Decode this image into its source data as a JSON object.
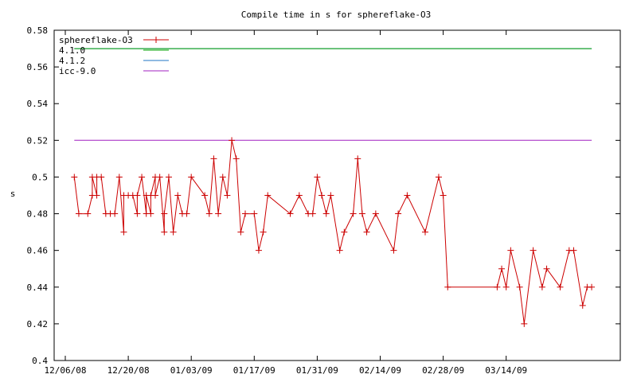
{
  "chart_data": {
    "type": "line",
    "title": "Compile time in s for sphereflake-O3",
    "xlabel": "",
    "ylabel": "s",
    "x_tick_labels": [
      "12/06/08",
      "12/20/08",
      "01/03/09",
      "01/17/09",
      "01/31/09",
      "02/14/09",
      "02/28/09",
      "03/14/09"
    ],
    "x_ticks_days_start": "12/06/08",
    "ylim": [
      0.4,
      0.58
    ],
    "y_ticks": [
      "0.4",
      "0.42",
      "0.44",
      "0.46",
      "0.48",
      "0.5",
      "0.52",
      "0.54",
      "0.56",
      "0.58"
    ],
    "legend_placement": "top-left",
    "series": [
      {
        "name": "sphereflake-O3",
        "color": "#cc0000",
        "marker": "plus",
        "points": [
          {
            "x": "12/08/08",
            "y": 0.5
          },
          {
            "x": "12/09/08",
            "y": 0.48
          },
          {
            "x": "12/11/08",
            "y": 0.48
          },
          {
            "x": "12/12/08",
            "y": 0.49
          },
          {
            "x": "12/12/08",
            "y": 0.5
          },
          {
            "x": "12/13/08",
            "y": 0.49
          },
          {
            "x": "12/13/08",
            "y": 0.5
          },
          {
            "x": "12/14/08",
            "y": 0.5
          },
          {
            "x": "12/15/08",
            "y": 0.48
          },
          {
            "x": "12/16/08",
            "y": 0.48
          },
          {
            "x": "12/17/08",
            "y": 0.48
          },
          {
            "x": "12/18/08",
            "y": 0.5
          },
          {
            "x": "12/19/08",
            "y": 0.47
          },
          {
            "x": "12/19/08",
            "y": 0.49
          },
          {
            "x": "12/20/08",
            "y": 0.49
          },
          {
            "x": "12/21/08",
            "y": 0.49
          },
          {
            "x": "12/22/08",
            "y": 0.48
          },
          {
            "x": "12/22/08",
            "y": 0.49
          },
          {
            "x": "12/23/08",
            "y": 0.5
          },
          {
            "x": "12/24/08",
            "y": 0.48
          },
          {
            "x": "12/24/08",
            "y": 0.49
          },
          {
            "x": "12/25/08",
            "y": 0.48
          },
          {
            "x": "12/25/08",
            "y": 0.49
          },
          {
            "x": "12/26/08",
            "y": 0.5
          },
          {
            "x": "12/26/08",
            "y": 0.49
          },
          {
            "x": "12/27/08",
            "y": 0.5
          },
          {
            "x": "12/28/08",
            "y": 0.47
          },
          {
            "x": "12/28/08",
            "y": 0.48
          },
          {
            "x": "12/29/08",
            "y": 0.5
          },
          {
            "x": "12/30/08",
            "y": 0.47
          },
          {
            "x": "12/31/08",
            "y": 0.49
          },
          {
            "x": "01/01/09",
            "y": 0.48
          },
          {
            "x": "01/02/09",
            "y": 0.48
          },
          {
            "x": "01/03/09",
            "y": 0.5
          },
          {
            "x": "01/06/09",
            "y": 0.49
          },
          {
            "x": "01/07/09",
            "y": 0.48
          },
          {
            "x": "01/08/09",
            "y": 0.51
          },
          {
            "x": "01/09/09",
            "y": 0.48
          },
          {
            "x": "01/10/09",
            "y": 0.5
          },
          {
            "x": "01/11/09",
            "y": 0.49
          },
          {
            "x": "01/12/09",
            "y": 0.52
          },
          {
            "x": "01/13/09",
            "y": 0.51
          },
          {
            "x": "01/14/09",
            "y": 0.47
          },
          {
            "x": "01/15/09",
            "y": 0.48
          },
          {
            "x": "01/17/09",
            "y": 0.48
          },
          {
            "x": "01/18/09",
            "y": 0.46
          },
          {
            "x": "01/19/09",
            "y": 0.47
          },
          {
            "x": "01/20/09",
            "y": 0.49
          },
          {
            "x": "01/25/09",
            "y": 0.48
          },
          {
            "x": "01/27/09",
            "y": 0.49
          },
          {
            "x": "01/29/09",
            "y": 0.48
          },
          {
            "x": "01/30/09",
            "y": 0.48
          },
          {
            "x": "01/31/09",
            "y": 0.5
          },
          {
            "x": "02/01/09",
            "y": 0.49
          },
          {
            "x": "02/02/09",
            "y": 0.48
          },
          {
            "x": "02/03/09",
            "y": 0.49
          },
          {
            "x": "02/05/09",
            "y": 0.46
          },
          {
            "x": "02/06/09",
            "y": 0.47
          },
          {
            "x": "02/08/09",
            "y": 0.48
          },
          {
            "x": "02/09/09",
            "y": 0.51
          },
          {
            "x": "02/10/09",
            "y": 0.48
          },
          {
            "x": "02/11/09",
            "y": 0.47
          },
          {
            "x": "02/13/09",
            "y": 0.48
          },
          {
            "x": "02/17/09",
            "y": 0.46
          },
          {
            "x": "02/18/09",
            "y": 0.48
          },
          {
            "x": "02/20/09",
            "y": 0.49
          },
          {
            "x": "02/24/09",
            "y": 0.47
          },
          {
            "x": "02/27/09",
            "y": 0.5
          },
          {
            "x": "02/28/09",
            "y": 0.49
          },
          {
            "x": "03/01/09",
            "y": 0.44
          },
          {
            "x": "03/12/09",
            "y": 0.44
          },
          {
            "x": "03/13/09",
            "y": 0.45
          },
          {
            "x": "03/14/09",
            "y": 0.44
          },
          {
            "x": "03/15/09",
            "y": 0.46
          },
          {
            "x": "03/17/09",
            "y": 0.44
          },
          {
            "x": "03/18/09",
            "y": 0.42
          },
          {
            "x": "03/20/09",
            "y": 0.46
          },
          {
            "x": "03/22/09",
            "y": 0.44
          },
          {
            "x": "03/23/09",
            "y": 0.45
          },
          {
            "x": "03/26/09",
            "y": 0.44
          },
          {
            "x": "03/28/09",
            "y": 0.46
          },
          {
            "x": "03/29/09",
            "y": 0.46
          },
          {
            "x": "03/31/09",
            "y": 0.43
          },
          {
            "x": "04/01/09",
            "y": 0.44
          },
          {
            "x": "04/02/09",
            "y": 0.44
          }
        ]
      },
      {
        "name": "4.1.0",
        "color": "#00a000",
        "marker": "none",
        "points": [
          {
            "x": "12/08/08",
            "y": 0.57
          },
          {
            "x": "04/02/09",
            "y": 0.57
          }
        ]
      },
      {
        "name": "4.1.2",
        "color": "#1f74c4",
        "marker": "none",
        "points": [
          {
            "x": "12/08/08",
            "y": 0.57
          },
          {
            "x": "04/02/09",
            "y": 0.57
          }
        ]
      },
      {
        "name": "icc-9.0",
        "color": "#a020c0",
        "marker": "none",
        "points": [
          {
            "x": "12/08/08",
            "y": 0.52
          },
          {
            "x": "04/02/09",
            "y": 0.52
          }
        ]
      }
    ]
  }
}
